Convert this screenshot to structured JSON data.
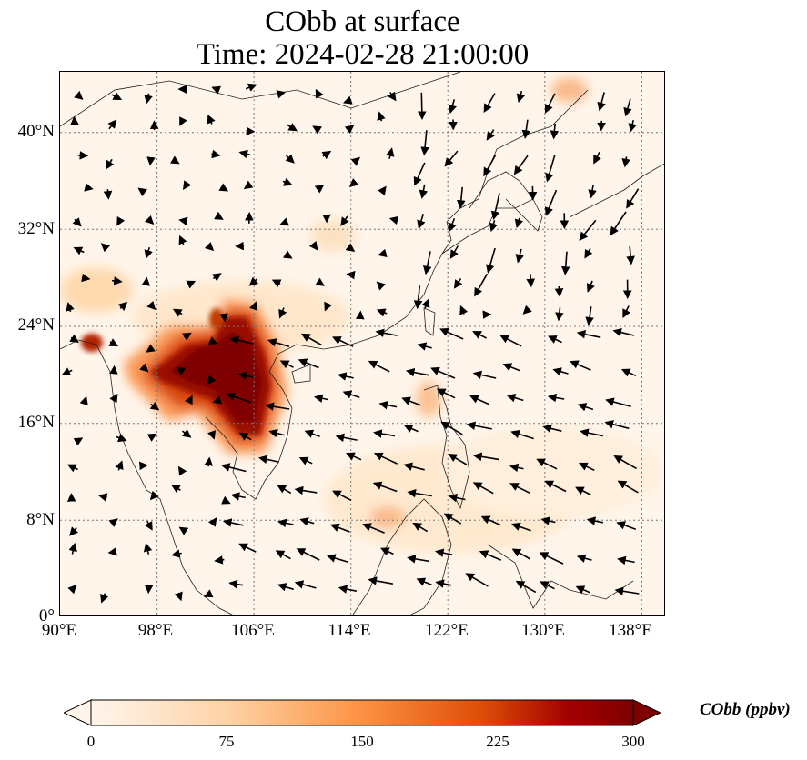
{
  "title": {
    "line1": "CObb at surface",
    "line2": "Time: 2024-02-28 21:00:00"
  },
  "map": {
    "projection": "PlateCarree",
    "lon_range": [
      90,
      140
    ],
    "lat_range": [
      0,
      45
    ],
    "grid": "dotted",
    "field": "CObb surface concentration",
    "vectors": "wind arrows"
  },
  "axes": {
    "y_ticks": [
      {
        "value": 40,
        "label": "40°N"
      },
      {
        "value": 32,
        "label": "32°N"
      },
      {
        "value": 24,
        "label": "24°N"
      },
      {
        "value": 16,
        "label": "16°N"
      },
      {
        "value": 8,
        "label": "8°N"
      },
      {
        "value": 0,
        "label": "0°"
      }
    ],
    "x_ticks": [
      {
        "value": 90,
        "label": "90°E"
      },
      {
        "value": 98,
        "label": "98°E"
      },
      {
        "value": 106,
        "label": "106°E"
      },
      {
        "value": 114,
        "label": "114°E"
      },
      {
        "value": 122,
        "label": "122°E"
      },
      {
        "value": 130,
        "label": "130°E"
      },
      {
        "value": 138,
        "label": "138°E"
      }
    ]
  },
  "colorbar": {
    "label": "CObb (ppbv)",
    "min": 0,
    "max": 300,
    "extend": "both",
    "ticks": [
      {
        "value": 0,
        "label": "0"
      },
      {
        "value": 75,
        "label": "75"
      },
      {
        "value": 150,
        "label": "150"
      },
      {
        "value": 225,
        "label": "225"
      },
      {
        "value": 300,
        "label": "300"
      }
    ],
    "colors": [
      "#fff5eb",
      "#fdd3a6",
      "#fd9243",
      "#de4e08",
      "#a30000",
      "#7f0000"
    ]
  }
}
